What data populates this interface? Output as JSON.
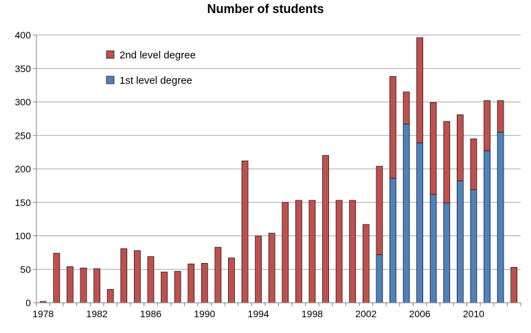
{
  "chart_data": {
    "type": "bar",
    "stacked": true,
    "title": "Number of students",
    "xlabel": "",
    "ylabel": "",
    "ylim": [
      0,
      400
    ],
    "yticks": [
      0,
      50,
      100,
      150,
      200,
      250,
      300,
      350,
      400
    ],
    "x": [
      1978,
      1979,
      1980,
      1981,
      1982,
      1983,
      1984,
      1985,
      1986,
      1987,
      1988,
      1989,
      1990,
      1991,
      1992,
      1993,
      1994,
      1995,
      1996,
      1997,
      1998,
      1999,
      2000,
      2001,
      2002,
      2003,
      2004,
      2005,
      2006,
      2007,
      2008,
      2009,
      2010,
      2011,
      2012,
      2013
    ],
    "xtick_labels": [
      "1978",
      "1982",
      "1986",
      "1990",
      "1994",
      "1998",
      "2002",
      "2006",
      "2010"
    ],
    "xtick_years": [
      1978,
      1982,
      1986,
      1990,
      1994,
      1998,
      2002,
      2006,
      2010
    ],
    "grid": true,
    "legend_position": "top-left",
    "series": [
      {
        "name": "1st level degree",
        "color": "#4F81BD",
        "values": [
          0,
          0,
          0,
          0,
          0,
          0,
          0,
          0,
          0,
          0,
          0,
          0,
          0,
          0,
          0,
          0,
          0,
          0,
          0,
          0,
          0,
          0,
          0,
          0,
          0,
          72,
          186,
          267,
          239,
          162,
          149,
          182,
          169,
          227,
          255,
          0
        ]
      },
      {
        "name": "2nd level degree",
        "color": "#C0504D",
        "values": [
          2,
          74,
          54,
          52,
          51,
          20,
          81,
          78,
          69,
          46,
          47,
          58,
          59,
          83,
          67,
          212,
          100,
          104,
          150,
          153,
          153,
          220,
          153,
          153,
          117,
          132,
          152,
          48,
          157,
          137,
          122,
          99,
          76,
          75,
          47,
          53
        ]
      }
    ]
  }
}
